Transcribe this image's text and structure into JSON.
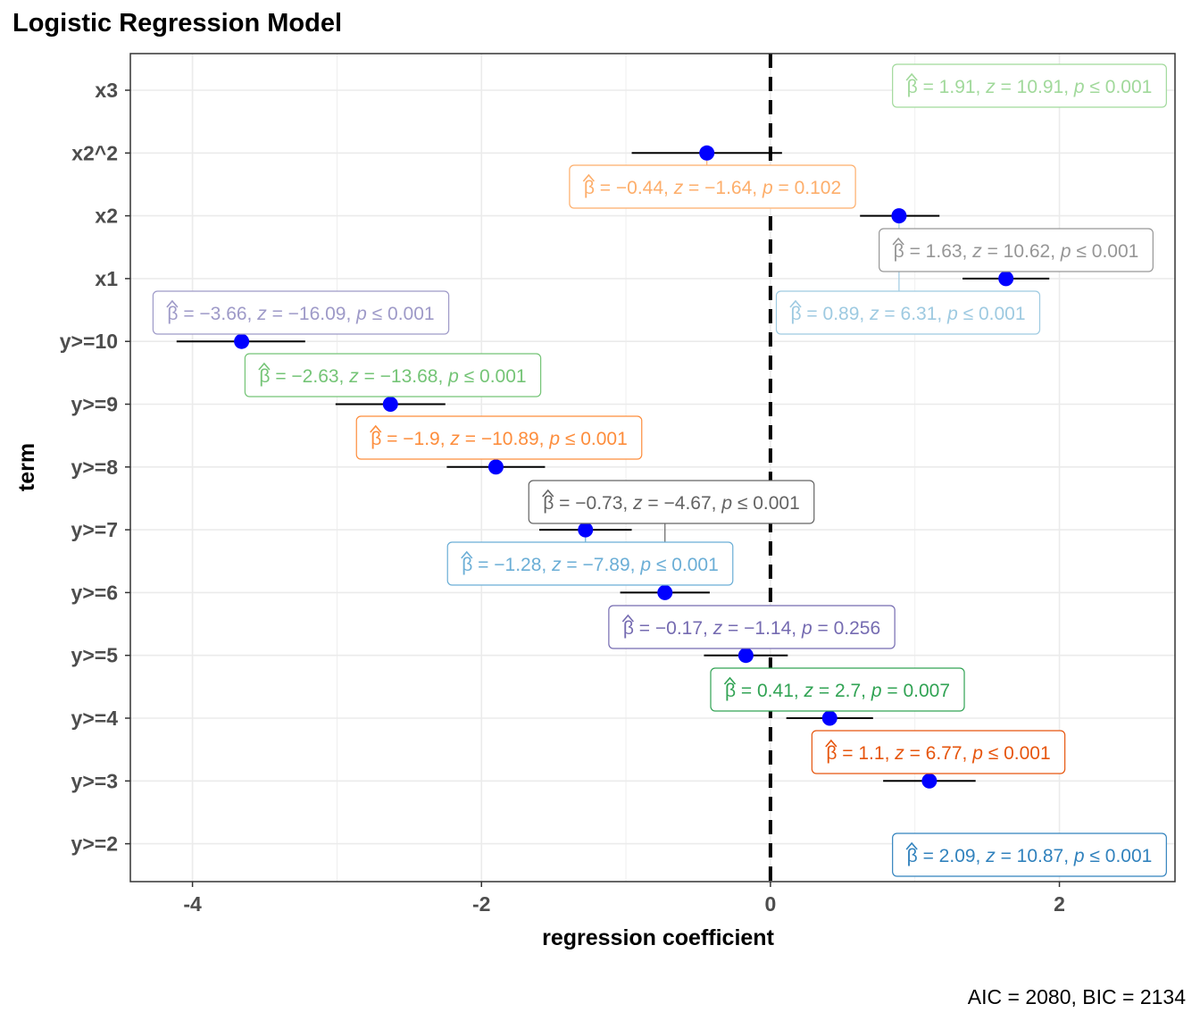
{
  "title": "Logistic Regression Model",
  "caption": "AIC = 2080, BIC = 2134",
  "chart_data": {
    "type": "scatter",
    "xlabel": "regression coefficient",
    "ylabel": "term",
    "xlim": [
      -4.43,
      2.8
    ],
    "x_ticks": [
      -4,
      -2,
      0,
      2
    ],
    "x_tick_labels": [
      "-4",
      "-2",
      "0",
      "2"
    ],
    "reference_line": 0,
    "grid": true,
    "terms": [
      {
        "term": "x3",
        "estimate": 1.91,
        "ci": [
          null,
          null
        ],
        "beta": "1.91",
        "z": "10.91",
        "p_op": "≤",
        "p": "0.001",
        "color": "#a1d99b"
      },
      {
        "term": "x2^2",
        "estimate": -0.44,
        "ci": [
          -0.96,
          0.08
        ],
        "beta": "−0.44",
        "z": "−1.64",
        "p_op": "=",
        "p": "0.102",
        "color": "#fdae6b"
      },
      {
        "term": "x2",
        "estimate": 0.89,
        "ci": [
          0.62,
          1.17
        ],
        "beta": "0.89",
        "z": "6.31",
        "p_op": "≤",
        "p": "0.001",
        "color": "#9ecae1"
      },
      {
        "term": "x1",
        "estimate": 1.63,
        "ci": [
          1.33,
          1.93
        ],
        "beta": "1.63",
        "z": "10.62",
        "p_op": "≤",
        "p": "0.001",
        "color": "#969696"
      },
      {
        "term": "y>=10",
        "estimate": -3.66,
        "ci": [
          -4.11,
          -3.22
        ],
        "beta": "−3.66",
        "z": "−16.09",
        "p_op": "≤",
        "p": "0.001",
        "color": "#9e9ac8"
      },
      {
        "term": "y>=9",
        "estimate": -2.63,
        "ci": [
          -3.01,
          -2.25
        ],
        "beta": "−2.63",
        "z": "−13.68",
        "p_op": "≤",
        "p": "0.001",
        "color": "#74c476"
      },
      {
        "term": "y>=8",
        "estimate": -1.9,
        "ci": [
          -2.24,
          -1.56
        ],
        "beta": "−1.9",
        "z": "−10.89",
        "p_op": "≤",
        "p": "0.001",
        "color": "#fd8d3c"
      },
      {
        "term": "y>=7",
        "estimate": -1.28,
        "ci": [
          -1.6,
          -0.96
        ],
        "beta": "−1.28",
        "z": "−7.89",
        "p_op": "≤",
        "p": "0.001",
        "color": "#6baed6"
      },
      {
        "term": "y>=6",
        "estimate": -0.73,
        "ci": [
          -1.04,
          -0.42
        ],
        "beta": "−0.73",
        "z": "−4.67",
        "p_op": "≤",
        "p": "0.001",
        "color": "#636363"
      },
      {
        "term": "y>=5",
        "estimate": -0.17,
        "ci": [
          -0.46,
          0.12
        ],
        "beta": "−0.17",
        "z": "−1.14",
        "p_op": "=",
        "p": "0.256",
        "color": "#756bb1"
      },
      {
        "term": "y>=4",
        "estimate": 0.41,
        "ci": [
          0.11,
          0.71
        ],
        "beta": "0.41",
        "z": "2.7",
        "p_op": "=",
        "p": "0.007",
        "color": "#31a354"
      },
      {
        "term": "y>=3",
        "estimate": 1.1,
        "ci": [
          0.78,
          1.42
        ],
        "beta": "1.1",
        "z": "6.77",
        "p_op": "≤",
        "p": "0.001",
        "color": "#e6550d"
      },
      {
        "term": "y>=2",
        "estimate": 2.09,
        "ci": [
          null,
          null
        ],
        "beta": "2.09",
        "z": "10.87",
        "p_op": "≤",
        "p": "0.001",
        "color": "#3182bd"
      }
    ]
  }
}
